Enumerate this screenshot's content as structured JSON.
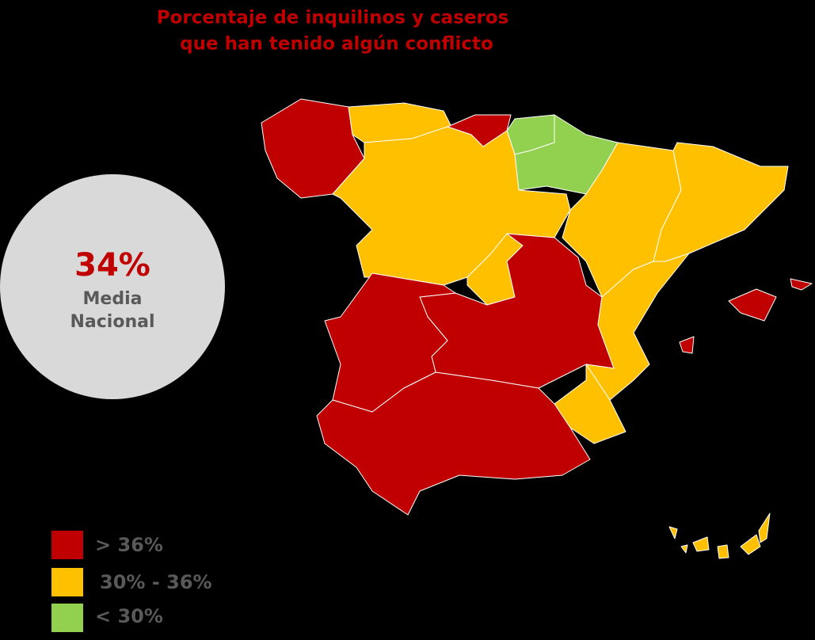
{
  "title": [
    "Porcentaje de inquilinos y caseros",
    "que han tenido algún conflicto"
  ],
  "national_average": {
    "value": "34%",
    "label": [
      "Media",
      "Nacional"
    ]
  },
  "legend": [
    {
      "label": "> 36%",
      "color": "#c00000"
    },
    {
      "label": "30% - 36%",
      "color": "#ffc000"
    },
    {
      "label": "< 30%",
      "color": "#92d050"
    }
  ]
}
